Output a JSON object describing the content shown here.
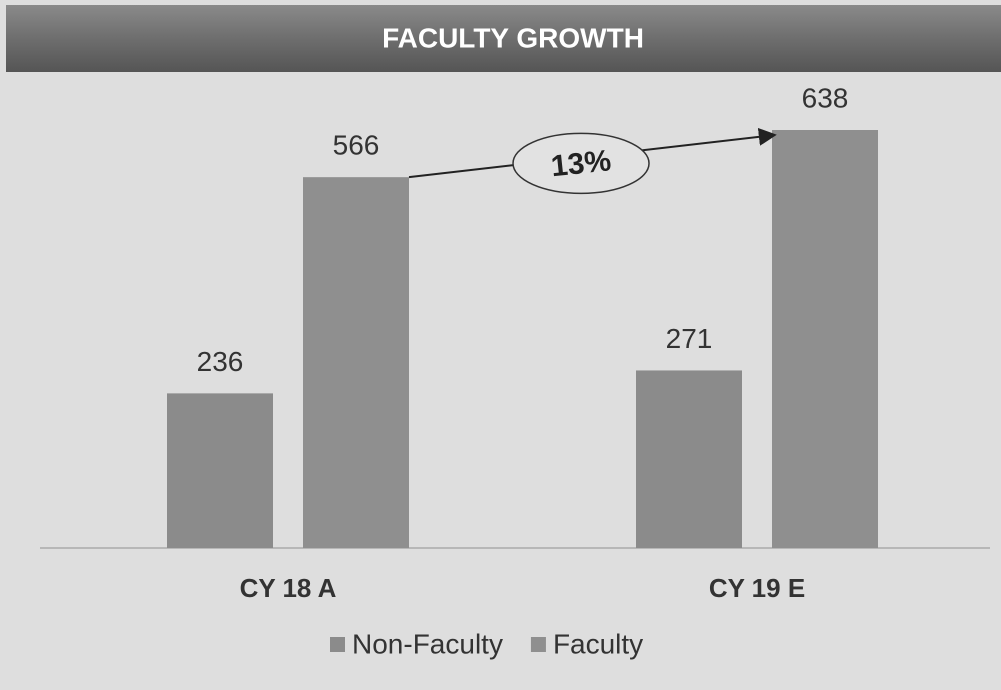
{
  "chart_data": {
    "type": "bar",
    "title": "FACULTY GROWTH",
    "categories": [
      "CY 18 A",
      "CY 19 E"
    ],
    "series": [
      {
        "name": "Non-Faculty",
        "color": "#8b8b8b",
        "values": [
          236,
          271
        ]
      },
      {
        "name": "Faculty",
        "color": "#8f8f8f",
        "values": [
          566,
          638
        ]
      }
    ],
    "annotation": "13%"
  }
}
